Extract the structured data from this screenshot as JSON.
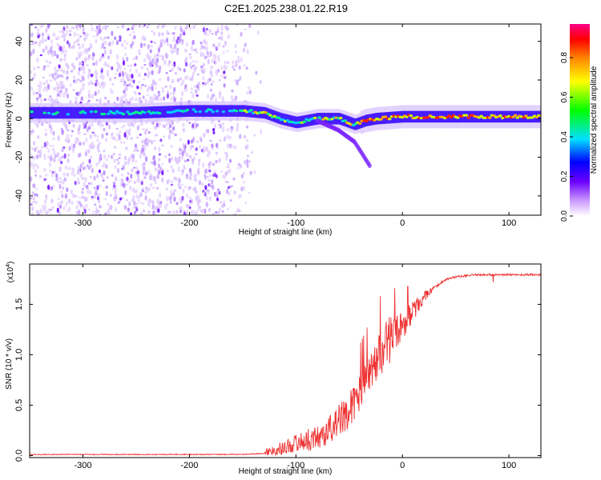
{
  "title": "C2E1.2025.238.01.22.R19",
  "spectrogram": {
    "type": "heatmap",
    "xlabel": "Height of straight line (km)",
    "ylabel": "Frequency (Hz)",
    "xlim": [
      -350,
      130
    ],
    "ylim": [
      -50,
      49
    ],
    "xticks": [
      -300,
      -200,
      -100,
      0,
      100
    ],
    "yticks": [
      -40,
      -20,
      0,
      20,
      40
    ],
    "colorbar": {
      "label": "Normalized spectral amplitude",
      "range": [
        0.0,
        0.97
      ],
      "ticks": [
        0.0,
        0.2,
        0.4,
        0.6,
        0.8
      ]
    },
    "ridge": [
      {
        "x": -350,
        "y": 3
      },
      {
        "x": -300,
        "y": 3
      },
      {
        "x": -250,
        "y": 3
      },
      {
        "x": -200,
        "y": 4
      },
      {
        "x": -170,
        "y": 4
      },
      {
        "x": -150,
        "y": 4
      },
      {
        "x": -130,
        "y": 3
      },
      {
        "x": -115,
        "y": 0
      },
      {
        "x": -100,
        "y": -2
      },
      {
        "x": -80,
        "y": 0
      },
      {
        "x": -60,
        "y": 0
      },
      {
        "x": -45,
        "y": -3
      },
      {
        "x": -35,
        "y": -1
      },
      {
        "x": -25,
        "y": 0
      },
      {
        "x": 0,
        "y": 1
      },
      {
        "x": 50,
        "y": 1
      },
      {
        "x": 130,
        "y": 1
      }
    ],
    "branch": [
      {
        "x": -80,
        "y": -1
      },
      {
        "x": -60,
        "y": -6
      },
      {
        "x": -45,
        "y": -12
      },
      {
        "x": -38,
        "y": -18
      },
      {
        "x": -30,
        "y": -25
      }
    ],
    "noise_extent": [
      -350,
      -140
    ]
  },
  "snr": {
    "type": "line",
    "xlabel": "Height of straight line (km)",
    "ylabel": "SNR (10 * v/v)",
    "yscale_note": "(x10",
    "yscale_exp": "4",
    "xlim": [
      -350,
      130
    ],
    "ylim": [
      -0.02,
      1.9
    ],
    "xticks": [
      -300,
      -200,
      -100,
      0,
      100
    ],
    "yticks": [
      0.0,
      0.5,
      1.0,
      1.5
    ],
    "series": [
      {
        "color": "#ee3333",
        "points": [
          {
            "x": -350,
            "y": 0.01
          },
          {
            "x": -250,
            "y": 0.01
          },
          {
            "x": -150,
            "y": 0.01
          },
          {
            "x": -130,
            "y": 0.02
          },
          {
            "x": -110,
            "y": 0.06
          },
          {
            "x": -100,
            "y": 0.1
          },
          {
            "x": -90,
            "y": 0.12
          },
          {
            "x": -80,
            "y": 0.14
          },
          {
            "x": -70,
            "y": 0.2
          },
          {
            "x": -60,
            "y": 0.3
          },
          {
            "x": -50,
            "y": 0.4
          },
          {
            "x": -40,
            "y": 0.55
          },
          {
            "x": -30,
            "y": 0.75
          },
          {
            "x": -20,
            "y": 0.95
          },
          {
            "x": -10,
            "y": 1.12
          },
          {
            "x": 0,
            "y": 1.25
          },
          {
            "x": 10,
            "y": 1.4
          },
          {
            "x": 20,
            "y": 1.55
          },
          {
            "x": 30,
            "y": 1.66
          },
          {
            "x": 40,
            "y": 1.74
          },
          {
            "x": 50,
            "y": 1.77
          },
          {
            "x": 70,
            "y": 1.79
          },
          {
            "x": 90,
            "y": 1.79
          },
          {
            "x": 110,
            "y": 1.79
          },
          {
            "x": 130,
            "y": 1.79
          }
        ]
      }
    ]
  }
}
